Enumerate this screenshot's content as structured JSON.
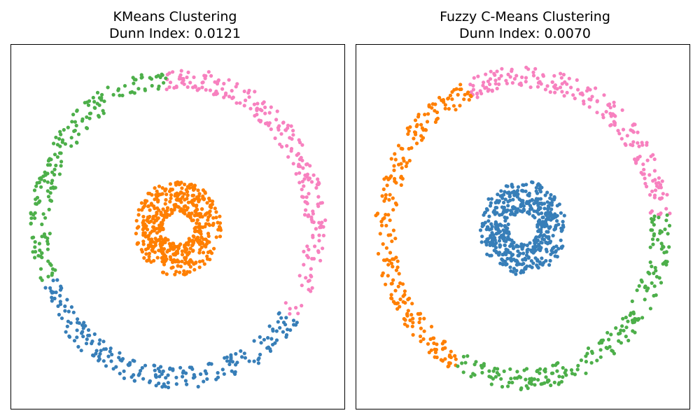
{
  "chart_data": [
    {
      "type": "scatter",
      "title": "KMeans Clustering",
      "subtitle": "Dunn Index: 0.0121",
      "xlabel": "",
      "ylabel": "",
      "grid": false,
      "axis_ticks": false,
      "xlim": [
        -1.15,
        1.15
      ],
      "ylim": [
        -1.15,
        1.15
      ],
      "structure": {
        "inner_ring_radius": [
          0.1,
          0.3
        ],
        "outer_ring_radius": [
          0.88,
          1.02
        ]
      },
      "series": [
        {
          "color": "#f781bf",
          "region": "outer ring",
          "angle_deg": [
            -35,
            95
          ],
          "approx_points": 220
        },
        {
          "color": "#4daf4a",
          "region": "outer ring",
          "angle_deg": [
            95,
            200
          ],
          "approx_points": 180
        },
        {
          "color": "#377eb8",
          "region": "outer ring",
          "angle_deg": [
            200,
            325
          ],
          "approx_points": 220
        },
        {
          "color": "#ff7f00",
          "region": "inner ring",
          "angle_deg": [
            0,
            360
          ],
          "approx_points": 500
        }
      ]
    },
    {
      "type": "scatter",
      "title": "Fuzzy C-Means Clustering",
      "subtitle": "Dunn Index: 0.0070",
      "xlabel": "",
      "ylabel": "",
      "grid": false,
      "axis_ticks": false,
      "xlim": [
        -1.15,
        1.15
      ],
      "ylim": [
        -1.15,
        1.15
      ],
      "structure": {
        "inner_ring_radius": [
          0.1,
          0.3
        ],
        "outer_ring_radius": [
          0.88,
          1.02
        ]
      },
      "series": [
        {
          "color": "#f781bf",
          "region": "outer ring",
          "angle_deg": [
            5,
            113
          ],
          "approx_points": 200
        },
        {
          "color": "#ff7f00",
          "region": "outer ring",
          "angle_deg": [
            113,
            242
          ],
          "approx_points": 230
        },
        {
          "color": "#4daf4a",
          "region": "outer ring",
          "angle_deg": [
            242,
            365
          ],
          "approx_points": 210
        },
        {
          "color": "#377eb8",
          "region": "inner ring",
          "angle_deg": [
            0,
            360
          ],
          "approx_points": 500
        }
      ]
    }
  ]
}
